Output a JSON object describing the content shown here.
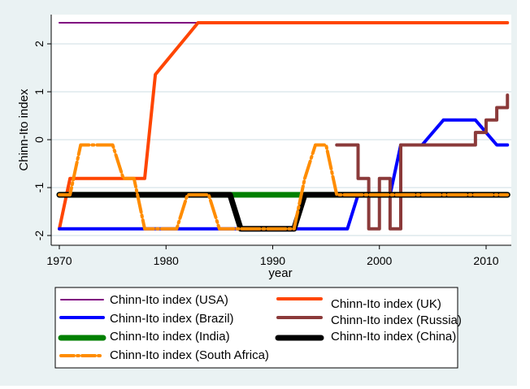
{
  "chart_data": {
    "type": "line",
    "title": "",
    "xlabel": "year",
    "ylabel": "Chinn-Ito index",
    "xlim": [
      1970,
      2012
    ],
    "ylim": [
      -2,
      2.5
    ],
    "xticks": [
      1970,
      1980,
      1990,
      2000,
      2010
    ],
    "yticks": [
      -2,
      -1,
      0,
      1,
      2
    ],
    "ytick_labels": [
      "-2",
      "-1",
      "0",
      "1",
      "2"
    ],
    "xtick_labels": [
      "1970",
      "1980",
      "1990",
      "2000",
      "2010"
    ],
    "grid": "horizontal",
    "legend_position": "bottom",
    "series": [
      {
        "name": "Chinn-Ito index (USA)",
        "color": "#800080",
        "width": 2,
        "style": "solid",
        "x": [
          1970,
          1983
        ],
        "y": [
          2.44,
          2.44
        ]
      },
      {
        "name": "Chinn-Ito index (UK)",
        "color": "#ff4500",
        "width": 4,
        "style": "solid",
        "x": [
          1970,
          1971,
          1978,
          1979,
          1980,
          1981,
          1982,
          1983,
          2012
        ],
        "y": [
          -1.86,
          -0.81,
          -0.81,
          1.36,
          1.63,
          1.9,
          2.17,
          2.44,
          2.44
        ]
      },
      {
        "name": "Chinn-Ito index (Brazil)",
        "color": "#0000ff",
        "width": 4,
        "style": "solid",
        "x": [
          1970,
          1997,
          1998,
          2001,
          2002,
          2004,
          2006,
          2009,
          2010,
          2011,
          2012
        ],
        "y": [
          -1.86,
          -1.86,
          -1.15,
          -1.15,
          -0.11,
          -0.11,
          0.41,
          0.41,
          0.15,
          -0.11,
          -0.11
        ]
      },
      {
        "name": "Chinn-Ito index (Russia)",
        "color": "#8b3a3a",
        "width": 4,
        "style": "step",
        "x": [
          1996,
          1997,
          1998,
          1999,
          2000,
          2001,
          2002,
          2003,
          2004,
          2005,
          2006,
          2007,
          2008,
          2009,
          2010,
          2011,
          2012
        ],
        "y": [
          -0.11,
          -0.11,
          -0.81,
          -1.86,
          -0.81,
          -1.86,
          -0.11,
          -0.11,
          -0.11,
          -0.11,
          -0.11,
          -0.11,
          -0.11,
          0.15,
          0.41,
          0.67,
          0.93
        ]
      },
      {
        "name": "Chinn-Ito index (India)",
        "color": "#008000",
        "width": 7,
        "style": "solid",
        "x": [
          1970,
          2012
        ],
        "y": [
          -1.15,
          -1.15
        ]
      },
      {
        "name": "Chinn-Ito index (China)",
        "color": "#000000",
        "width": 7,
        "style": "solid",
        "x": [
          1970,
          1986,
          1987,
          1992,
          1993,
          2012
        ],
        "y": [
          -1.15,
          -1.15,
          -1.86,
          -1.86,
          -1.15,
          -1.15
        ]
      },
      {
        "name": "Chinn-Ito index (South Africa)",
        "color": "#ff8c00",
        "width": 4,
        "style": "dashdot",
        "x": [
          1970,
          1971,
          1972,
          1975,
          1976,
          1977,
          1978,
          1981,
          1982,
          1984,
          1985,
          1992,
          1993,
          1994,
          1995,
          1996,
          2012
        ],
        "y": [
          -1.15,
          -1.15,
          -0.11,
          -0.11,
          -0.81,
          -0.81,
          -1.86,
          -1.86,
          -1.15,
          -1.15,
          -1.86,
          -1.86,
          -0.81,
          -0.11,
          -0.11,
          -1.15,
          -1.15
        ]
      }
    ]
  }
}
